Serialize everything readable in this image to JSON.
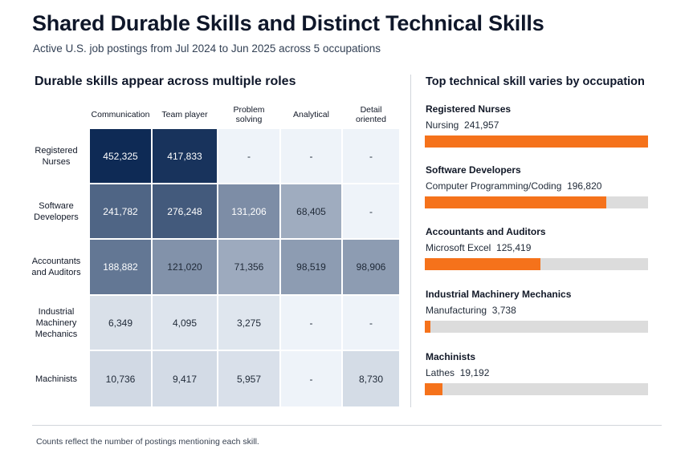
{
  "header": {
    "title": "Shared Durable Skills and Distinct Technical Skills",
    "subtitle": "Active U.S. job postings from Jul 2024 to Jun 2025 across 5 occupations"
  },
  "footnote": "Counts reflect the number of postings mentioning each skill.",
  "colors": {
    "bar_fill": "#f5721b",
    "bar_track": "#dcdcdc",
    "heat_low": "#eef3f9",
    "heat_high": "#0e2a55"
  },
  "chart_data": [
    {
      "type": "heatmap",
      "title": "Durable skills appear across multiple roles",
      "columns": [
        "Communication",
        "Team player",
        "Problem\nsolving",
        "Analytical",
        "Detail\noriented"
      ],
      "rows": [
        "Registered\nNurses",
        "Software\nDevelopers",
        "Accountants\nand Auditors",
        "Industrial\nMachinery\nMechanics",
        "Machinists"
      ],
      "values": [
        [
          452325,
          417833,
          null,
          null,
          null
        ],
        [
          241782,
          276248,
          131206,
          68405,
          null
        ],
        [
          188882,
          121020,
          71356,
          98519,
          98906
        ],
        [
          6349,
          4095,
          3275,
          null,
          null
        ],
        [
          10736,
          9417,
          5957,
          null,
          8730
        ]
      ],
      "labels": [
        [
          "452,325",
          "417,833",
          "-",
          "-",
          "-"
        ],
        [
          "241,782",
          "276,248",
          "131,206",
          "68,405",
          "-"
        ],
        [
          "188,882",
          "121,020",
          "71,356",
          "98,519",
          "98,906"
        ],
        [
          "6,349",
          "4,095",
          "3,275",
          "-",
          "-"
        ],
        [
          "10,736",
          "9,417",
          "5,957",
          "-",
          "8,730"
        ]
      ]
    },
    {
      "type": "bar",
      "orientation": "horizontal",
      "title": "Top technical skill varies by occupation",
      "xlim": [
        0,
        241957
      ],
      "items": [
        {
          "occupation": "Registered Nurses",
          "skill": "Nursing",
          "value": 241957,
          "value_label": "241,957"
        },
        {
          "occupation": "Software Developers",
          "skill": "Computer Programming/Coding",
          "value": 196820,
          "value_label": "196,820"
        },
        {
          "occupation": "Accountants and Auditors",
          "skill": "Microsoft Excel",
          "value": 125419,
          "value_label": "125,419"
        },
        {
          "occupation": "Industrial Machinery Mechanics",
          "skill": "Manufacturing",
          "value": 3738,
          "value_label": "3,738"
        },
        {
          "occupation": "Machinists",
          "skill": "Lathes",
          "value": 19192,
          "value_label": "19,192"
        }
      ]
    }
  ]
}
